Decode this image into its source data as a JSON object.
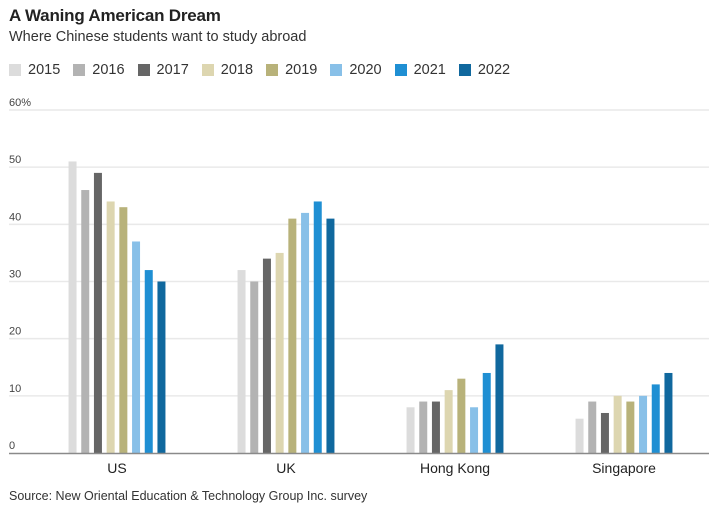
{
  "chart_data": {
    "type": "bar",
    "title": "A Waning American Dream",
    "subtitle": "Where Chinese students want to study abroad",
    "xlabel": "",
    "ylabel": "",
    "ylim": [
      0,
      60
    ],
    "yticks": [
      0,
      10,
      20,
      30,
      40,
      50,
      60
    ],
    "ytick_labels": [
      "0",
      "10",
      "20",
      "30",
      "40",
      "50",
      "60%"
    ],
    "grid": true,
    "legend_position": "top-left",
    "categories": [
      "US",
      "UK",
      "Hong Kong",
      "Singapore"
    ],
    "series": [
      {
        "name": "2015",
        "color": "#dcdcdc",
        "values": [
          51,
          32,
          8,
          6
        ]
      },
      {
        "name": "2016",
        "color": "#b3b3b3",
        "values": [
          46,
          30,
          9,
          9
        ]
      },
      {
        "name": "2017",
        "color": "#666666",
        "values": [
          49,
          34,
          9,
          7
        ]
      },
      {
        "name": "2018",
        "color": "#ddd6b0",
        "values": [
          44,
          35,
          11,
          10
        ]
      },
      {
        "name": "2019",
        "color": "#b8b27a",
        "values": [
          43,
          41,
          13,
          9
        ]
      },
      {
        "name": "2020",
        "color": "#88c0e8",
        "values": [
          37,
          42,
          8,
          10
        ]
      },
      {
        "name": "2021",
        "color": "#1f8fd3",
        "values": [
          32,
          44,
          14,
          12
        ]
      },
      {
        "name": "2022",
        "color": "#10689e",
        "values": [
          30,
          41,
          19,
          14
        ]
      }
    ],
    "source": "Source: New Oriental Education & Technology Group Inc. survey"
  }
}
